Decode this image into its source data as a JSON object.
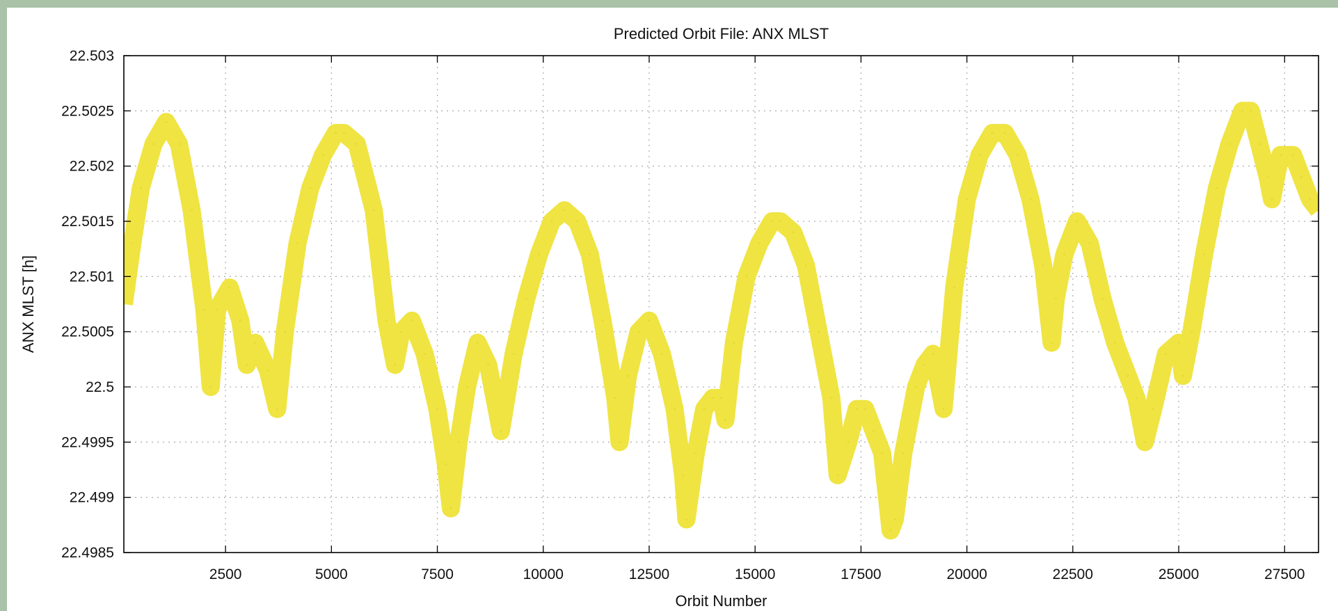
{
  "chart_data": {
    "type": "line",
    "title": "Predicted Orbit File: ANX MLST",
    "xlabel": "Orbit Number",
    "ylabel": "ANX MLST [h]",
    "xlim": [
      100,
      28300
    ],
    "ylim": [
      22.4985,
      22.503
    ],
    "x_ticks": [
      2500,
      5000,
      7500,
      10000,
      12500,
      15000,
      17500,
      20000,
      22500,
      25000,
      27500
    ],
    "x_tick_labels": [
      "2500",
      "5000",
      "7500",
      "10000",
      "12500",
      "15000",
      "17500",
      "20000",
      "22500",
      "25000",
      "27500"
    ],
    "y_ticks": [
      22.4985,
      22.499,
      22.4995,
      22.5,
      22.5005,
      22.501,
      22.5015,
      22.502,
      22.5025,
      22.503
    ],
    "y_tick_labels": [
      "22.4985",
      "22.499",
      "22.4995",
      "22.5",
      "22.5005",
      "22.501",
      "22.5015",
      "22.502",
      "22.5025",
      "22.503"
    ],
    "grid": true,
    "series_color": "#efe442",
    "series": [
      {
        "x": [
          100,
          300,
          500,
          800,
          1100,
          1400,
          1700,
          2000,
          2150,
          2300,
          2600,
          2850,
          3000,
          3200,
          3500,
          3720,
          3900,
          4200,
          4500,
          4800,
          5100,
          5300,
          5600,
          6000,
          6300,
          6500,
          6650,
          6900,
          7200,
          7500,
          7700,
          7820,
          8000,
          8200,
          8450,
          8700,
          9000,
          9300,
          9600,
          9900,
          10200,
          10500,
          10800,
          11100,
          11400,
          11700,
          11800,
          12000,
          12250,
          12500,
          12800,
          13100,
          13300,
          13380,
          13600,
          13800,
          14000,
          14200,
          14300,
          14500,
          14800,
          15100,
          15400,
          15600,
          15900,
          16200,
          16500,
          16800,
          16950,
          17200,
          17400,
          17600,
          17800,
          18000,
          18200,
          18300,
          18500,
          18800,
          19000,
          19200,
          19450,
          19700,
          20000,
          20300,
          20600,
          20900,
          21200,
          21500,
          21800,
          22000,
          22100,
          22300,
          22600,
          22900,
          23200,
          23500,
          23800,
          24000,
          24200,
          24400,
          24700,
          25000,
          25100,
          25300,
          25600,
          25900,
          26200,
          26500,
          26700,
          26900,
          27100,
          27200,
          27400,
          27700,
          27900,
          28100,
          28300
        ],
        "y": [
          22.50075,
          22.5013,
          22.5018,
          22.5022,
          22.5024,
          22.5022,
          22.5016,
          22.5007,
          22.5,
          22.5007,
          22.5009,
          22.5006,
          22.5002,
          22.5004,
          22.50015,
          22.4998,
          22.5005,
          22.5013,
          22.5018,
          22.5021,
          22.5023,
          22.5023,
          22.5022,
          22.5016,
          22.5006,
          22.5002,
          22.5005,
          22.5006,
          22.5003,
          22.4998,
          22.4993,
          22.4989,
          22.4995,
          22.5,
          22.5004,
          22.5002,
          22.4996,
          22.5003,
          22.5008,
          22.5012,
          22.5015,
          22.5016,
          22.5015,
          22.5012,
          22.5006,
          22.4999,
          22.4995,
          22.5001,
          22.5005,
          22.5006,
          22.5003,
          22.4998,
          22.4992,
          22.4988,
          22.4994,
          22.4998,
          22.4999,
          22.4999,
          22.4997,
          22.5004,
          22.501,
          22.5013,
          22.5015,
          22.5015,
          22.5014,
          22.5011,
          22.5005,
          22.4999,
          22.4992,
          22.4995,
          22.4998,
          22.4998,
          22.4996,
          22.4994,
          22.4987,
          22.4988,
          22.4994,
          22.5,
          22.5002,
          22.5003,
          22.4998,
          22.5009,
          22.5017,
          22.5021,
          22.5023,
          22.5023,
          22.5021,
          22.5017,
          22.5011,
          22.5004,
          22.5008,
          22.5012,
          22.5015,
          22.5013,
          22.5008,
          22.5004,
          22.5001,
          22.4999,
          22.4995,
          22.4998,
          22.5003,
          22.5004,
          22.5001,
          22.5005,
          22.5012,
          22.5018,
          22.5022,
          22.5025,
          22.5025,
          22.5022,
          22.5019,
          22.5017,
          22.5021,
          22.5021,
          22.5019,
          22.5017,
          22.5016
        ]
      }
    ]
  }
}
